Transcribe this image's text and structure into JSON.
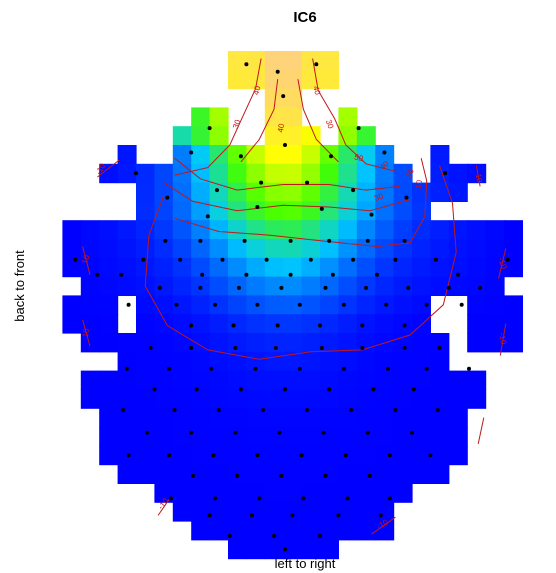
{
  "chart_data": {
    "type": "heatmap",
    "title": "IC6",
    "xlabel": "left to right",
    "ylabel": "back to front",
    "grid_size": [
      27,
      28
    ],
    "cell_value_range": [
      0,
      70
    ],
    "colormap": [
      "#0000ff",
      "#00c8ff",
      "#44ff00",
      "#ffff00",
      "#ffd080"
    ],
    "head_rows": [
      {
        "row": 1,
        "spans": [
          [
            11,
            16
          ]
        ]
      },
      {
        "row": 2,
        "spans": [
          [
            11,
            16
          ]
        ]
      },
      {
        "row": 3,
        "spans": [
          [
            13,
            14
          ]
        ]
      },
      {
        "row": 4,
        "spans": [
          [
            9,
            10
          ],
          [
            13,
            14
          ],
          [
            17,
            17
          ]
        ]
      },
      {
        "row": 5,
        "spans": [
          [
            8,
            10
          ],
          [
            13,
            15
          ],
          [
            17,
            18
          ]
        ]
      },
      {
        "row": 6,
        "spans": [
          [
            5,
            5
          ],
          [
            8,
            19
          ],
          [
            22,
            22
          ]
        ]
      },
      {
        "row": 7,
        "spans": [
          [
            4,
            5
          ],
          [
            6,
            20
          ],
          [
            22,
            24
          ]
        ]
      },
      {
        "row": 8,
        "spans": [
          [
            6,
            21
          ],
          [
            22,
            23
          ]
        ]
      },
      {
        "row": 9,
        "spans": [
          [
            6,
            21
          ]
        ]
      },
      {
        "row": 10,
        "spans": [
          [
            2,
            26
          ]
        ]
      },
      {
        "row": 11,
        "spans": [
          [
            2,
            26
          ]
        ]
      },
      {
        "row": 12,
        "spans": [
          [
            2,
            26
          ]
        ]
      },
      {
        "row": 13,
        "spans": [
          [
            3,
            25
          ]
        ]
      },
      {
        "row": 14,
        "spans": [
          [
            2,
            4
          ],
          [
            6,
            21
          ],
          [
            24,
            26
          ]
        ]
      },
      {
        "row": 15,
        "spans": [
          [
            2,
            4
          ],
          [
            6,
            21
          ],
          [
            24,
            26
          ]
        ]
      },
      {
        "row": 16,
        "spans": [
          [
            3,
            4
          ],
          [
            5,
            22
          ],
          [
            24,
            26
          ]
        ]
      },
      {
        "row": 17,
        "spans": [
          [
            5,
            22
          ]
        ]
      },
      {
        "row": 18,
        "spans": [
          [
            3,
            24
          ]
        ]
      },
      {
        "row": 19,
        "spans": [
          [
            3,
            24
          ]
        ]
      },
      {
        "row": 20,
        "spans": [
          [
            4,
            23
          ]
        ]
      },
      {
        "row": 21,
        "spans": [
          [
            4,
            23
          ]
        ]
      },
      {
        "row": 22,
        "spans": [
          [
            4,
            23
          ]
        ]
      },
      {
        "row": 23,
        "spans": [
          [
            5,
            22
          ]
        ]
      },
      {
        "row": 24,
        "spans": [
          [
            7,
            20
          ]
        ]
      },
      {
        "row": 25,
        "spans": [
          [
            8,
            19
          ]
        ]
      },
      {
        "row": 26,
        "spans": [
          [
            9,
            12
          ],
          [
            13,
            16
          ],
          [
            17,
            19
          ]
        ]
      },
      {
        "row": 27,
        "spans": [
          [
            11,
            16
          ]
        ]
      }
    ],
    "hotspot": {
      "center_col": 13.5,
      "center_row": 1,
      "peak": 70
    },
    "contour_levels": [
      -10,
      10,
      20,
      30,
      40,
      50
    ],
    "contour_labels": [
      "40",
      "40",
      "30",
      "40",
      "30",
      "50",
      "40",
      "20",
      "30",
      "10",
      "-10",
      "-10",
      "10",
      "10",
      "-10",
      "-10",
      "-10",
      "-10"
    ],
    "electrode_count": 128
  }
}
